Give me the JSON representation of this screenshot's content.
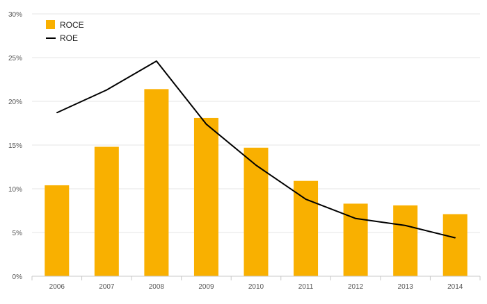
{
  "chart_data": {
    "type": "bar",
    "title": "",
    "xlabel": "",
    "ylabel": "",
    "categories": [
      "2006",
      "2007",
      "2008",
      "2009",
      "2010",
      "2011",
      "2012",
      "2013",
      "2014"
    ],
    "ylim": [
      0,
      30
    ],
    "yticks": [
      0,
      5,
      10,
      15,
      20,
      25,
      30
    ],
    "ytick_labels": [
      "0%",
      "5%",
      "10%",
      "15%",
      "20%",
      "25%",
      "30%"
    ],
    "grid": true,
    "legend_position": "top-left",
    "series": [
      {
        "name": "ROCE",
        "type": "bar",
        "color": "#F9B000",
        "values": [
          10.4,
          14.8,
          21.4,
          18.1,
          14.7,
          10.9,
          8.3,
          8.1,
          7.1
        ]
      },
      {
        "name": "ROE",
        "type": "line",
        "color": "#000000",
        "values": [
          18.7,
          21.3,
          24.6,
          17.4,
          12.7,
          8.8,
          6.6,
          5.8,
          4.4
        ]
      }
    ]
  }
}
